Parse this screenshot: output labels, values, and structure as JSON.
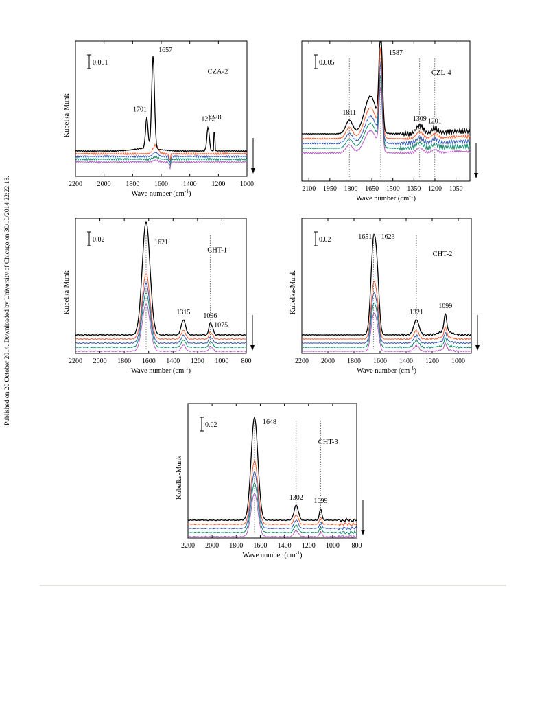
{
  "side_note": "Published on 20 October 2014. Downloaded by University of Chicago on 30/10/2014 22:22:18.",
  "colors": {
    "trace_colors": [
      "#000000",
      "#ff5a2a",
      "#2e55b4",
      "#0f8a6a",
      "#b55bc8",
      "#7fc9d2"
    ],
    "dotted_line": "#555555",
    "axis": "#000000"
  },
  "chart_data": [
    {
      "type": "line",
      "title": "CZA-2",
      "ylabel": "Kubelka-Munk",
      "xlabel": "Wave number (cm",
      "xlabel_sup": "-1",
      "xlabel_end": ")",
      "xlim": [
        2200,
        1000
      ],
      "xticks": [
        "2200",
        "2000",
        "1800",
        "1600",
        "1400",
        "1200",
        "1000"
      ],
      "xtick_values": [
        2200,
        2000,
        1800,
        1600,
        1400,
        1200,
        1000
      ],
      "scale_bar": "0.001",
      "arrow": "down",
      "n_traces": 5,
      "peaks": [
        {
          "label": "1701",
          "x": 1701
        },
        {
          "label": "1657",
          "x": 1657
        },
        {
          "label": "1272",
          "x": 1272
        },
        {
          "label": "1228",
          "x": 1228
        }
      ],
      "dotted_markers": []
    },
    {
      "type": "line",
      "title": "CZL-4",
      "ylabel": "",
      "xlabel": "Wave number (cm",
      "xlabel_sup": "-1",
      "xlabel_end": ")",
      "xlim": [
        2150,
        950
      ],
      "xticks": [
        "2100",
        "1950",
        "1800",
        "1650",
        "1500",
        "1350",
        "1200",
        "1050"
      ],
      "xtick_values": [
        2100,
        1950,
        1800,
        1650,
        1500,
        1350,
        1200,
        1050
      ],
      "scale_bar": "0.005",
      "arrow": "down",
      "n_traces": 5,
      "peaks": [
        {
          "label": "1811",
          "x": 1811
        },
        {
          "label": "1587",
          "x": 1587
        },
        {
          "label": "1309",
          "x": 1309
        },
        {
          "label": "1201",
          "x": 1201
        }
      ],
      "dotted_markers": [
        1811,
        1587,
        1309,
        1201
      ]
    },
    {
      "type": "line",
      "title": "CHT-1",
      "ylabel": "Kubelka-Munk",
      "xlabel": "Wave number (cm",
      "xlabel_sup": "-1",
      "xlabel_end": ")",
      "xlim": [
        2200,
        800
      ],
      "xticks": [
        "2200",
        "2000",
        "1800",
        "1600",
        "1400",
        "1200",
        "1000",
        "800"
      ],
      "xtick_values": [
        2200,
        2000,
        1800,
        1600,
        1400,
        1200,
        1000,
        800
      ],
      "scale_bar": "0.02",
      "arrow": "down",
      "n_traces": 5,
      "peaks": [
        {
          "label": "1621",
          "x": 1621
        },
        {
          "label": "1315",
          "x": 1315
        },
        {
          "label": "1096",
          "x": 1096
        },
        {
          "label": "1075",
          "x": 1075
        }
      ],
      "dotted_markers": [
        1621,
        1096
      ]
    },
    {
      "type": "line",
      "title": "CHT-2",
      "ylabel": "Kubelka-Munk",
      "xlabel": "Wave number (cm",
      "xlabel_sup": "-1",
      "xlabel_end": ")",
      "xlim": [
        2200,
        900
      ],
      "xticks": [
        "2200",
        "2000",
        "1800",
        "1600",
        "1400",
        "1200",
        "1000"
      ],
      "xtick_values": [
        2200,
        2000,
        1800,
        1600,
        1400,
        1200,
        1000
      ],
      "scale_bar": "0.02",
      "arrow": "down",
      "n_traces": 5,
      "peaks": [
        {
          "label": "1651",
          "x": 1651
        },
        {
          "label": "1623",
          "x": 1623
        },
        {
          "label": "1321",
          "x": 1321
        },
        {
          "label": "1099",
          "x": 1099
        }
      ],
      "dotted_markers": [
        1651,
        1623,
        1321
      ]
    },
    {
      "type": "line",
      "title": "CHT-3",
      "ylabel": "Kubelka-Munk",
      "xlabel": "Wave number (cm",
      "xlabel_sup": "-1",
      "xlabel_end": ")",
      "xlim": [
        2200,
        800
      ],
      "xticks": [
        "2200",
        "2000",
        "1800",
        "1600",
        "1400",
        "1200",
        "1000",
        "800"
      ],
      "xtick_values": [
        2200,
        2000,
        1800,
        1600,
        1400,
        1200,
        1000,
        800
      ],
      "scale_bar": "0.02",
      "arrow": "down",
      "n_traces": 5,
      "peaks": [
        {
          "label": "1648",
          "x": 1648
        },
        {
          "label": "1302",
          "x": 1302
        },
        {
          "label": "1099",
          "x": 1099
        }
      ],
      "dotted_markers": [
        1648,
        1302,
        1099
      ]
    }
  ]
}
